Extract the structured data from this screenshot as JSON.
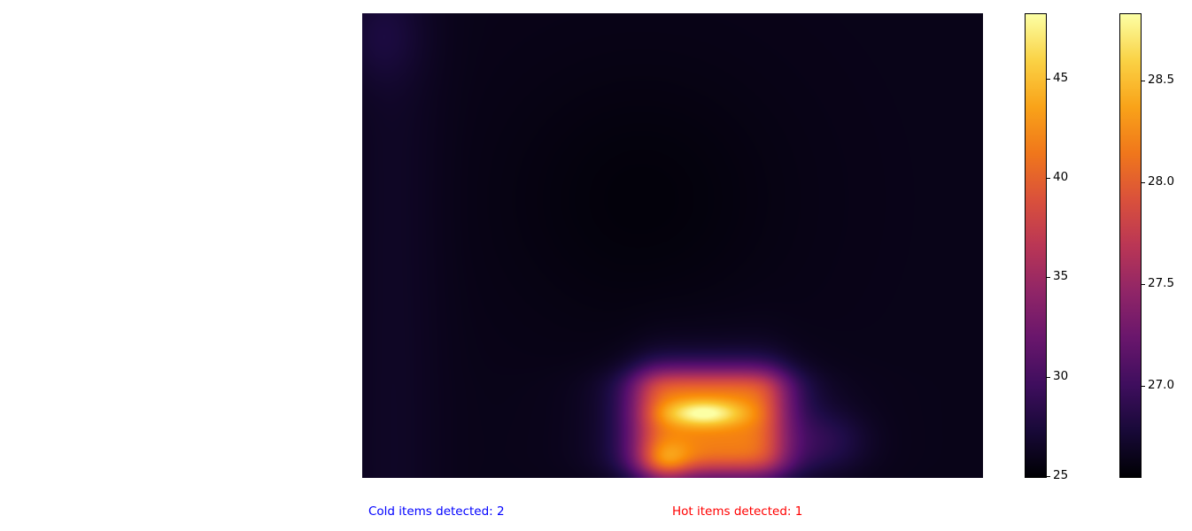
{
  "chart_data": {
    "type": "heatmap",
    "colormap": "inferno",
    "image": {
      "description_grid_cols": 14,
      "description_grid_rows": 11,
      "hot_region": {
        "col_range": [
          6,
          9
        ],
        "row_range": [
          8,
          10
        ],
        "peak_value": 48.3
      },
      "background_value": 25.8
    },
    "colorbars": [
      {
        "name": "",
        "range": [
          24.9,
          48.3
        ],
        "ticks": [
          "25",
          "30",
          "35",
          "40",
          "45"
        ],
        "tick_values": [
          25,
          30,
          35,
          40,
          45
        ]
      },
      {
        "name": "",
        "range": [
          26.55,
          28.83
        ],
        "ticks": [
          "27.0",
          "27.5",
          "28.0",
          "28.5"
        ],
        "tick_values": [
          27.0,
          27.5,
          28.0,
          28.5
        ]
      }
    ],
    "annotations": [
      {
        "text": "Cold items detected: 2",
        "color": "#0000ff"
      },
      {
        "text": "Hot items detected: 1",
        "color": "#ff0000"
      }
    ]
  },
  "captions": {
    "cold": "Cold items detected: 2",
    "hot": "Hot items detected: 1"
  },
  "colors": {
    "cold_text": "#0000ff",
    "hot_text": "#ff0000"
  }
}
